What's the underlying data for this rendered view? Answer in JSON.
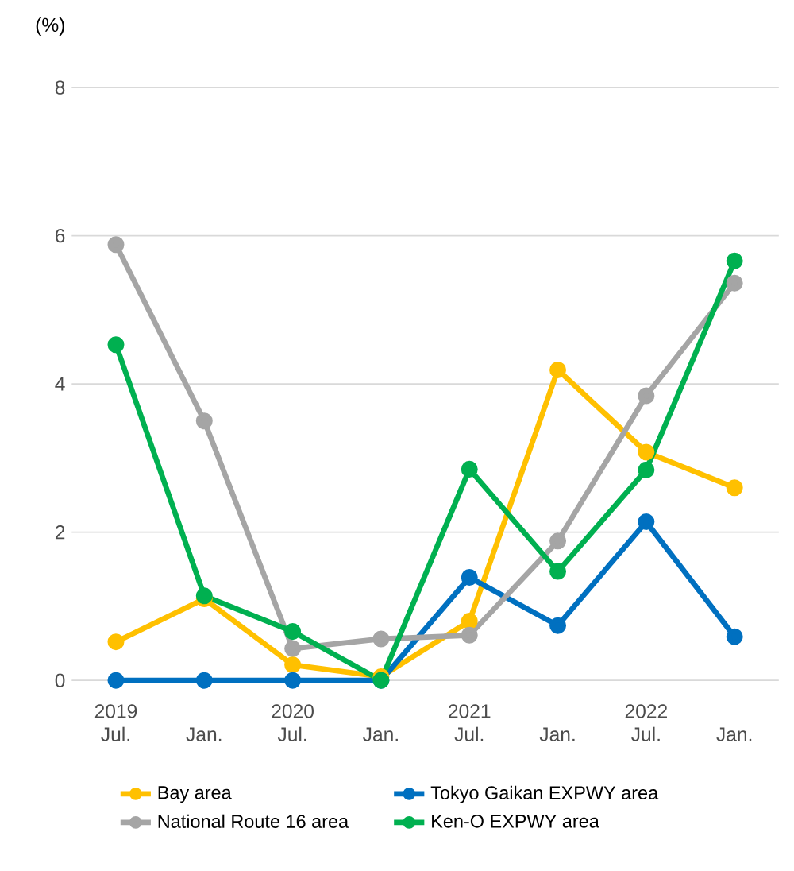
{
  "chart_data": {
    "type": "line",
    "ylabel": "(%)",
    "categories": [
      "2019 Jul.",
      "Jan.",
      "2020 Jul.",
      "Jan.",
      "2021 Jul.",
      "Jan.",
      "2022 Jul.",
      "Jan."
    ],
    "series": [
      {
        "name": "Bay area",
        "color": "#ffc000",
        "values": [
          0.52,
          1.1,
          0.21,
          0.05,
          0.8,
          4.19,
          3.08,
          2.6
        ]
      },
      {
        "name": "Tokyo Gaikan EXPWY area",
        "color": "#0070c0",
        "values": [
          0,
          0,
          0,
          0,
          1.39,
          0.74,
          2.14,
          0.59
        ]
      },
      {
        "name": "National Route 16 area",
        "color": "#a5a5a5",
        "values": [
          5.88,
          3.5,
          0.43,
          0.56,
          0.61,
          1.88,
          3.84,
          5.36
        ]
      },
      {
        "name": "Ken-O EXPWY area",
        "color": "#00b050",
        "values": [
          4.53,
          1.14,
          0.66,
          0,
          2.85,
          1.47,
          2.84,
          5.66
        ]
      }
    ],
    "ylim": [
      0,
      8
    ],
    "yticks": [
      0,
      2,
      4,
      6,
      8
    ],
    "grid": "y",
    "legend": "bottom",
    "marker": "circle",
    "line_style": "solid"
  }
}
